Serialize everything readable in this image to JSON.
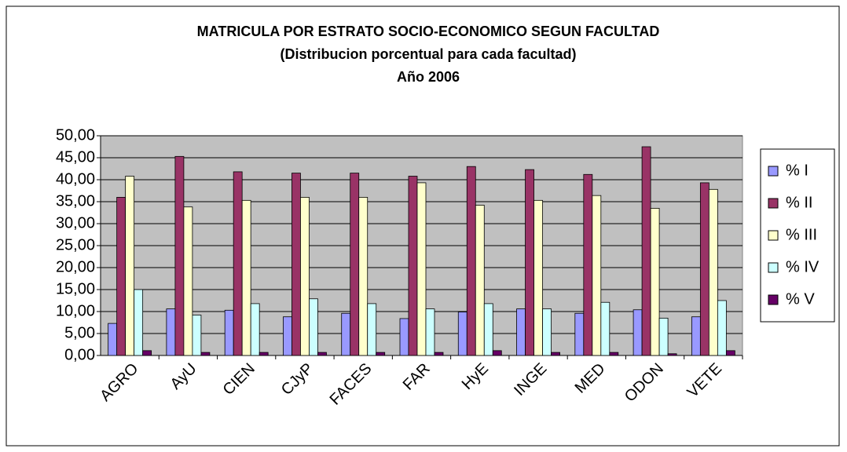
{
  "chart_data": {
    "type": "bar",
    "title": [
      "MATRICULA POR ESTRATO SOCIO-ECONOMICO SEGUN FACULTAD",
      "(Distribucion porcentual para cada facultad)",
      "Año 2006"
    ],
    "categories": [
      "AGRO",
      "AyU",
      "CIEN",
      "CJyP",
      "FACES",
      "FAR",
      "HyE",
      "INGE",
      "MED",
      "ODON",
      "VETE"
    ],
    "series": [
      {
        "name": "% I",
        "color": "#9999ff",
        "values": [
          7.3,
          10.6,
          10.3,
          8.8,
          9.6,
          8.4,
          9.9,
          10.6,
          9.6,
          10.4,
          8.8
        ]
      },
      {
        "name": "% II",
        "color": "#993366",
        "values": [
          36.0,
          45.3,
          41.8,
          41.5,
          41.5,
          40.8,
          43.0,
          42.3,
          41.2,
          47.5,
          39.3
        ]
      },
      {
        "name": "% III",
        "color": "#ffffcc",
        "values": [
          40.8,
          33.8,
          35.3,
          36.0,
          36.0,
          39.3,
          34.2,
          35.3,
          36.4,
          33.5,
          37.8
        ]
      },
      {
        "name": "% IV",
        "color": "#ccffff",
        "values": [
          15.0,
          9.2,
          11.8,
          12.9,
          11.8,
          10.6,
          11.8,
          10.6,
          12.1,
          8.5,
          12.5
        ]
      },
      {
        "name": "% V",
        "color": "#660066",
        "values": [
          1.1,
          0.7,
          0.7,
          0.7,
          0.7,
          0.7,
          1.1,
          0.7,
          0.7,
          0.4,
          1.1
        ]
      }
    ],
    "ylim": [
      0,
      50
    ],
    "yticks": [
      {
        "value": 0,
        "label": "0,00"
      },
      {
        "value": 5,
        "label": "5,00"
      },
      {
        "value": 10,
        "label": "10,00"
      },
      {
        "value": 15,
        "label": "15,00"
      },
      {
        "value": 20,
        "label": "20,00"
      },
      {
        "value": 25,
        "label": "25,00"
      },
      {
        "value": 30,
        "label": "30,00"
      },
      {
        "value": 35,
        "label": "35,00"
      },
      {
        "value": 40,
        "label": "40,00"
      },
      {
        "value": 45,
        "label": "45,00"
      },
      {
        "value": 50,
        "label": "50,00"
      }
    ],
    "grid": true,
    "legend": "right",
    "plot_background": "#c0c0c0"
  }
}
